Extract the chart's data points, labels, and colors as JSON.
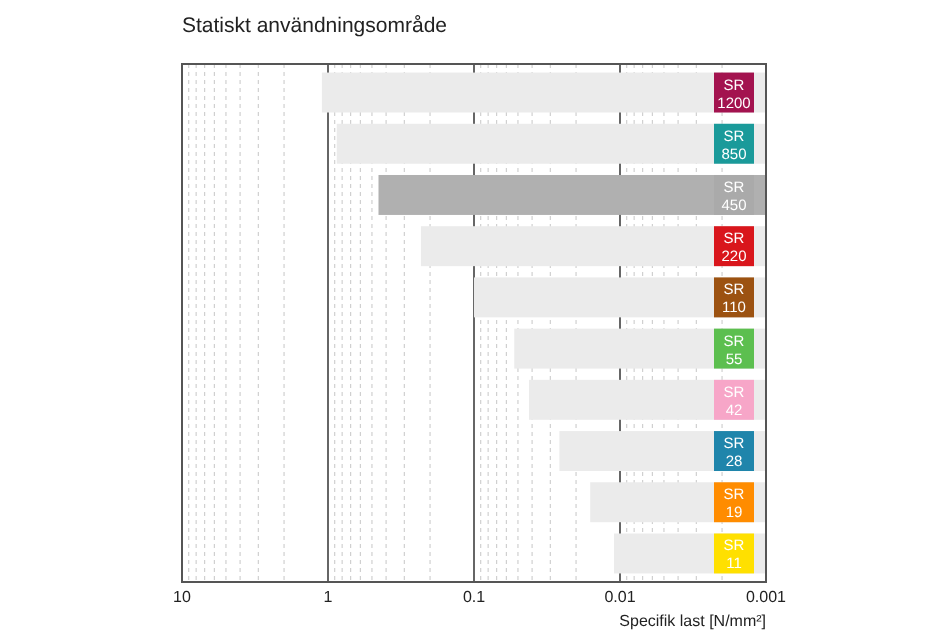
{
  "chart_data": {
    "type": "bar",
    "orientation": "horizontal",
    "title": "Statiskt användningsområde",
    "xlabel": "Specifik last [N/mm²]",
    "categories": [
      "SR 1200",
      "SR 850",
      "SR 450",
      "SR 220",
      "SR 110",
      "SR 55",
      "SR 42",
      "SR 28",
      "SR 19",
      "SR 11"
    ],
    "base": [
      0.001,
      0.001,
      0.001,
      0.001,
      0.001,
      0.001,
      0.001,
      0.001,
      0.001,
      0.001
    ],
    "values": [
      1.1,
      0.87,
      0.45,
      0.23,
      0.099,
      0.052,
      0.041,
      0.025,
      0.015,
      0.01
    ],
    "colors": [
      "#ebebeb",
      "#ebebeb",
      "#b0b0b0",
      "#ebebeb",
      "#ebebeb",
      "#ebebeb",
      "#ebebeb",
      "#ebebeb",
      "#ebebeb",
      "#ebebeb"
    ],
    "log": "x",
    "xlim": [
      10,
      0.001
    ],
    "xticks": [
      10,
      {
        "value": 9,
        "label": null
      },
      {
        "value": 8,
        "label": null
      },
      {
        "value": 7,
        "label": null
      },
      {
        "value": 6,
        "label": null
      },
      {
        "value": 5,
        "label": null
      },
      {
        "value": 4,
        "label": null
      },
      {
        "value": 3,
        "label": null
      },
      {
        "value": 2,
        "label": null
      },
      1,
      {
        "value": 0.9,
        "label": null
      },
      {
        "value": 0.8,
        "label": null
      },
      {
        "value": 0.7,
        "label": null
      },
      {
        "value": 0.6,
        "label": null
      },
      {
        "value": 0.5,
        "label": null
      },
      {
        "value": 0.4,
        "label": null
      },
      {
        "value": 0.3,
        "label": null
      },
      {
        "value": 0.2,
        "label": null
      },
      0.1,
      {
        "value": 0.09,
        "label": null
      },
      {
        "value": 0.08,
        "label": null
      },
      {
        "value": 0.07,
        "label": null
      },
      {
        "value": 0.06,
        "label": null
      },
      {
        "value": 0.05,
        "label": null
      },
      {
        "value": 0.04,
        "label": null
      },
      {
        "value": 0.03,
        "label": null
      },
      {
        "value": 0.02,
        "label": null
      },
      0.01,
      {
        "value": 0.009,
        "label": null
      },
      {
        "value": 0.008,
        "label": null
      },
      {
        "value": 0.007,
        "label": null
      },
      {
        "value": 0.006,
        "label": null
      },
      {
        "value": 0.005,
        "label": null
      },
      {
        "value": 0.004,
        "label": null
      },
      {
        "value": 0.003,
        "label": null
      },
      {
        "value": 0.002,
        "label": null
      },
      0.001
    ],
    "grid": "x"
  }
}
